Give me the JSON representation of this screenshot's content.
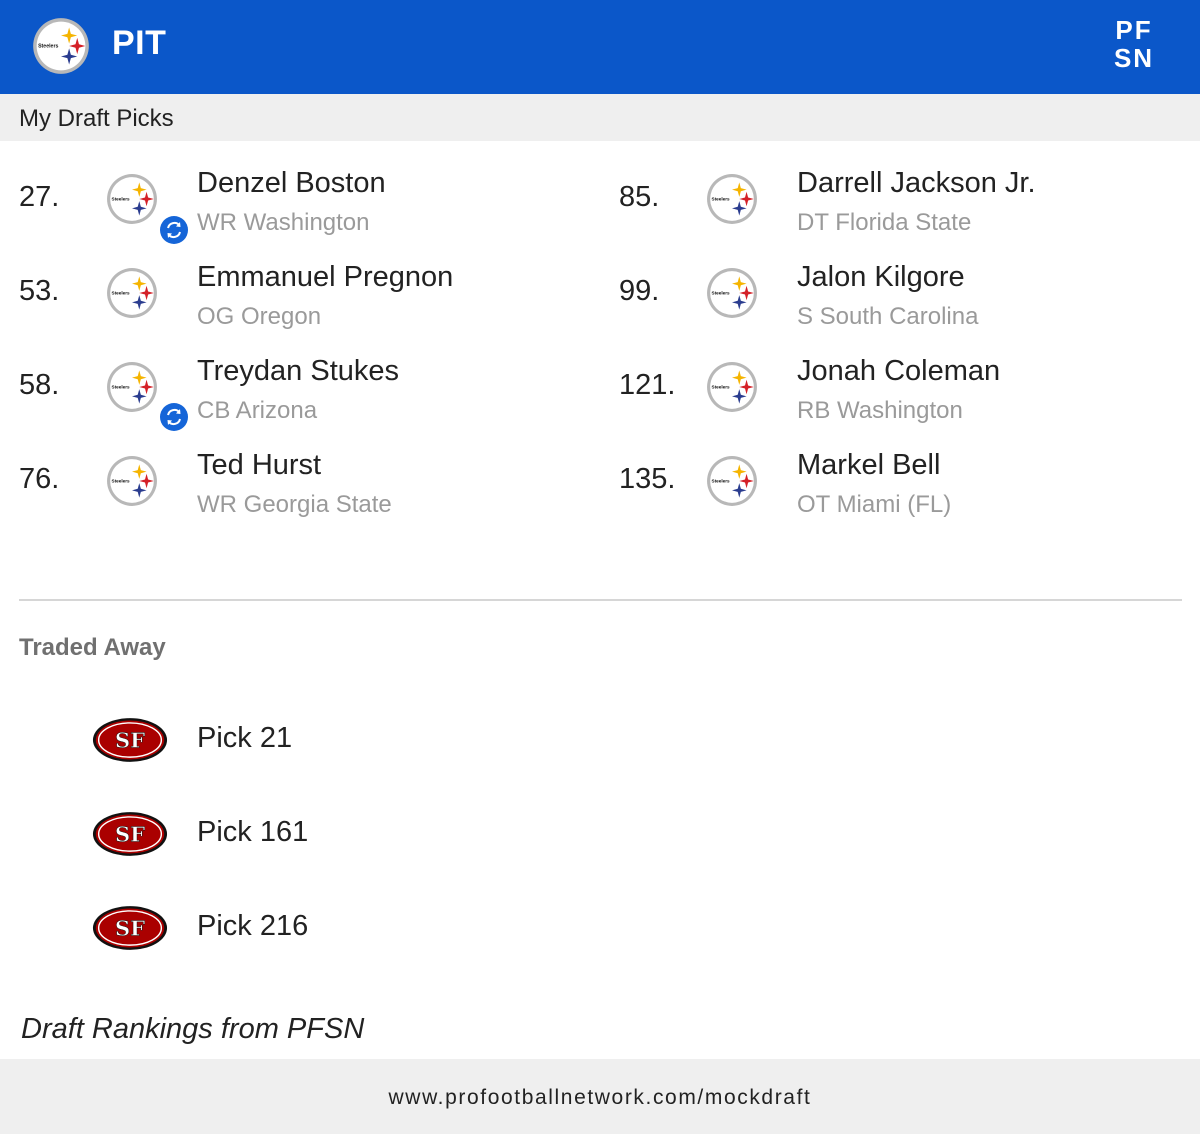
{
  "header": {
    "team_code": "PIT",
    "team_logo_icon": "steelers-logo-icon",
    "brand_logo_icon": "pfsn-logo-icon",
    "brand_logo_lines": [
      "PF",
      "SN"
    ],
    "background_color": "#0b57c9"
  },
  "subheader": {
    "title": "My Draft Picks"
  },
  "picks": [
    {
      "number": "27.",
      "name": "Denzel Boston",
      "position_school": "WR Washington",
      "traded": true
    },
    {
      "number": "53.",
      "name": "Emmanuel Pregnon",
      "position_school": "OG Oregon",
      "traded": false
    },
    {
      "number": "58.",
      "name": "Treydan Stukes",
      "position_school": "CB Arizona",
      "traded": true
    },
    {
      "number": "76.",
      "name": "Ted Hurst",
      "position_school": "WR Georgia State",
      "traded": false
    },
    {
      "number": "85.",
      "name": "Darrell Jackson Jr.",
      "position_school": "DT Florida State",
      "traded": false
    },
    {
      "number": "99.",
      "name": "Jalon Kilgore",
      "position_school": "S South Carolina",
      "traded": false
    },
    {
      "number": "121.",
      "name": "Jonah Coleman",
      "position_school": "RB Washington",
      "traded": false
    },
    {
      "number": "135.",
      "name": "Markel Bell",
      "position_school": "OT Miami (FL)",
      "traded": false
    }
  ],
  "traded_away": {
    "title": "Traded Away",
    "team_logo_icon": "49ers-logo-icon",
    "items": [
      {
        "label": "Pick 21"
      },
      {
        "label": "Pick 161"
      },
      {
        "label": "Pick 216"
      }
    ]
  },
  "footnote": "Draft Rankings from PFSN",
  "footer": {
    "url": "www.profootballnetwork.com/mockdraft"
  },
  "colors": {
    "accent_blue": "#0b57c9",
    "trade_badge": "#1565d8",
    "subtext_gray": "#9a9a9a",
    "niners_red": "#aa0000",
    "steelers_yellow": "#f5b400",
    "steelers_red": "#d42027",
    "steelers_blue": "#2a3c8f"
  }
}
